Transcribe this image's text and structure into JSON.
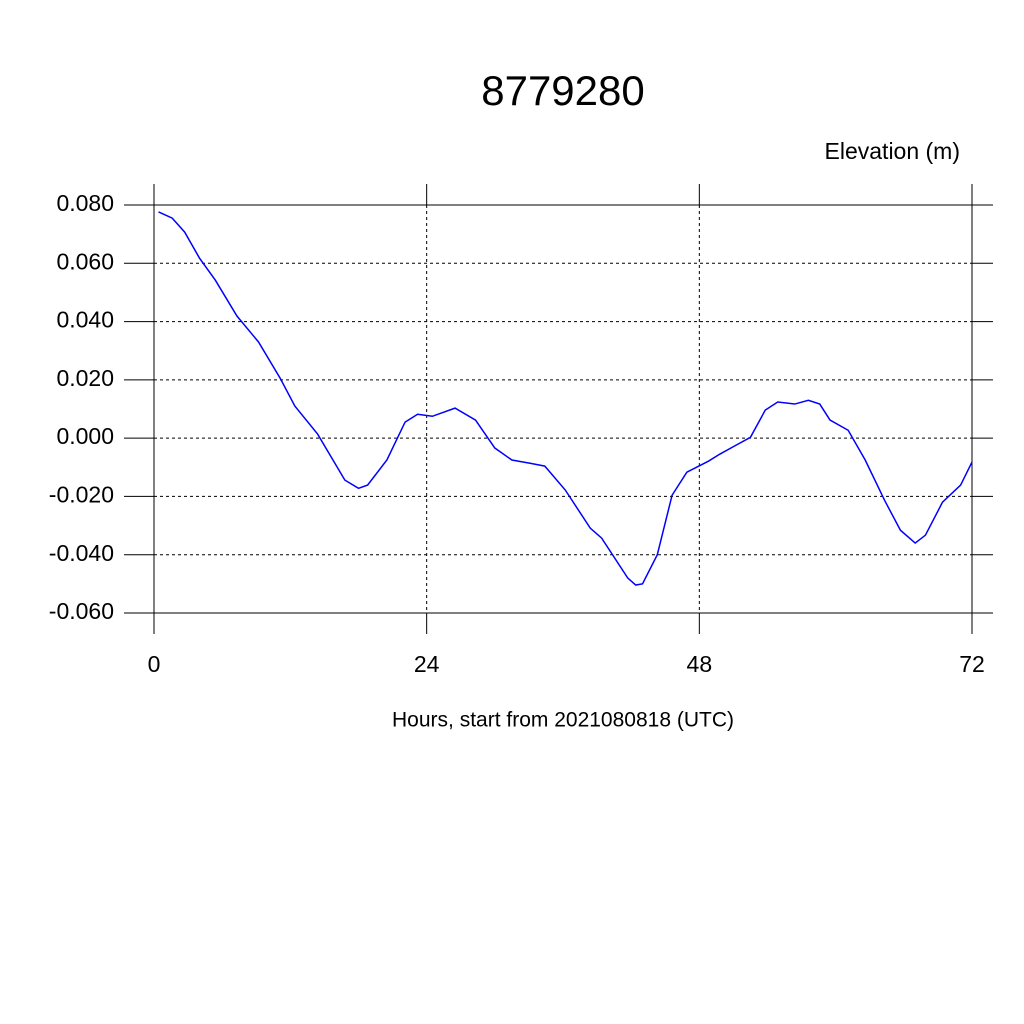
{
  "chart_data": {
    "type": "line",
    "title": "8779280",
    "ylabel": "Elevation (m)",
    "xlabel": "Hours, start from 2021080818 (UTC)",
    "x": [
      0.4,
      1.6,
      2.7,
      4.0,
      5.4,
      7.3,
      9.2,
      11.1,
      12.4,
      14.4,
      16.8,
      18.0,
      18.8,
      20.5,
      22.1,
      23.2,
      24.5,
      26.5,
      28.3,
      30.0,
      31.5,
      33.1,
      34.4,
      36.2,
      38.4,
      39.4,
      41.7,
      42.4,
      43.0,
      44.3,
      45.6,
      46.9,
      48.8,
      49.8,
      51.1,
      52.5,
      53.8,
      54.9,
      56.4,
      57.6,
      58.6,
      59.5,
      61.1,
      62.6,
      64.3,
      65.7,
      67.0,
      67.9,
      69.4,
      71.0,
      72.0
    ],
    "values": [
      0.0776,
      0.0755,
      0.0707,
      0.0618,
      0.0542,
      0.0419,
      0.033,
      0.0206,
      0.011,
      0.0014,
      -0.0144,
      -0.0172,
      -0.0161,
      -0.0075,
      0.0055,
      0.0082,
      0.0075,
      0.0103,
      0.0062,
      -0.0034,
      -0.0075,
      -0.0086,
      -0.0096,
      -0.0178,
      -0.0309,
      -0.0343,
      -0.048,
      -0.0504,
      -0.05,
      -0.04,
      -0.0196,
      -0.0117,
      -0.0079,
      -0.0055,
      -0.0027,
      0.0003,
      0.0096,
      0.0124,
      0.0117,
      0.013,
      0.0117,
      0.0062,
      0.0027,
      -0.0075,
      -0.0213,
      -0.0316,
      -0.036,
      -0.0333,
      -0.022,
      -0.0161,
      -0.0082
    ],
    "color": "#0000ff",
    "xlim": [
      0,
      72
    ],
    "xticks": [
      0,
      24,
      48,
      72
    ],
    "ylim": [
      -0.06,
      0.08
    ],
    "yticks": [
      {
        "value": -0.06,
        "label": "-0.060"
      },
      {
        "value": -0.04,
        "label": "-0.040"
      },
      {
        "value": -0.02,
        "label": "-0.020"
      },
      {
        "value": 0,
        "label": "0.000"
      },
      {
        "value": 0.02,
        "label": "0.020"
      },
      {
        "value": 0.04,
        "label": "0.040"
      },
      {
        "value": 0.06,
        "label": "0.060"
      },
      {
        "value": 0.08,
        "label": "0.080"
      }
    ],
    "grid": true
  }
}
